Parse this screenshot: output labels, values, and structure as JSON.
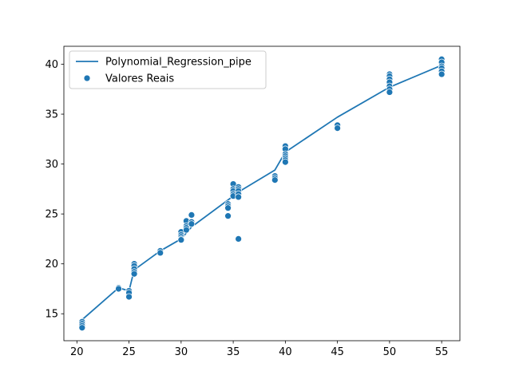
{
  "chart_data": {
    "type": "scatter",
    "title": "",
    "xlabel": "",
    "ylabel": "",
    "xlim": [
      18.75,
      56.75
    ],
    "ylim": [
      12.3,
      41.8
    ],
    "xticks": [
      20,
      25,
      30,
      35,
      40,
      45,
      50,
      55
    ],
    "yticks": [
      15,
      20,
      25,
      30,
      35,
      40
    ],
    "grid": false,
    "legend_position": "top-left",
    "colors": {
      "series": "#1f77b4",
      "marker_edge": "#ffffff"
    },
    "series": [
      {
        "name": "Polynomial_Regression_pipe",
        "kind": "line",
        "x": [
          20.5,
          24,
          25,
          25.5,
          28,
          30,
          30.5,
          31,
          34.5,
          35,
          35.5,
          39,
          40,
          45,
          50,
          55
        ],
        "y": [
          14.4,
          17.6,
          17.3,
          19.4,
          21.3,
          22.5,
          23.1,
          23.7,
          26.4,
          26.8,
          27.2,
          29.4,
          31.2,
          34.7,
          37.7,
          39.9
        ]
      },
      {
        "name": "Valores Reais",
        "kind": "scatter",
        "points": [
          [
            20.5,
            14.2
          ],
          [
            20.5,
            14.0
          ],
          [
            20.5,
            13.8
          ],
          [
            20.5,
            13.6
          ],
          [
            24,
            17.6
          ],
          [
            24,
            17.5
          ],
          [
            25,
            17.3
          ],
          [
            25,
            17.1
          ],
          [
            25,
            16.7
          ],
          [
            25.5,
            20.0
          ],
          [
            25.5,
            19.8
          ],
          [
            25.5,
            19.5
          ],
          [
            25.5,
            19.2
          ],
          [
            25.5,
            19.0
          ],
          [
            28,
            21.3
          ],
          [
            28,
            21.1
          ],
          [
            30,
            23.2
          ],
          [
            30,
            22.9
          ],
          [
            30,
            22.7
          ],
          [
            30,
            22.5
          ],
          [
            30,
            22.4
          ],
          [
            30.5,
            24.3
          ],
          [
            30.5,
            23.8
          ],
          [
            30.5,
            23.6
          ],
          [
            30.5,
            23.4
          ],
          [
            31,
            24.9
          ],
          [
            31,
            24.2
          ],
          [
            31,
            24.0
          ],
          [
            34.5,
            26.0
          ],
          [
            34.5,
            25.8
          ],
          [
            34.5,
            25.6
          ],
          [
            34.5,
            24.8
          ],
          [
            35,
            28.0
          ],
          [
            35,
            27.5
          ],
          [
            35,
            27.3
          ],
          [
            35,
            27.0
          ],
          [
            35,
            26.8
          ],
          [
            35.5,
            27.7
          ],
          [
            35.5,
            27.5
          ],
          [
            35.5,
            27.3
          ],
          [
            35.5,
            27.0
          ],
          [
            35.5,
            26.7
          ],
          [
            35.5,
            22.5
          ],
          [
            39,
            28.8
          ],
          [
            39,
            28.6
          ],
          [
            39,
            28.4
          ],
          [
            40,
            31.8
          ],
          [
            40,
            31.5
          ],
          [
            40,
            31.0
          ],
          [
            40,
            30.8
          ],
          [
            40,
            30.6
          ],
          [
            40,
            30.4
          ],
          [
            40,
            30.2
          ],
          [
            45,
            33.9
          ],
          [
            45,
            33.6
          ],
          [
            50,
            39.0
          ],
          [
            50,
            38.8
          ],
          [
            50,
            38.5
          ],
          [
            50,
            38.2
          ],
          [
            50,
            37.8
          ],
          [
            50,
            37.5
          ],
          [
            50,
            37.2
          ],
          [
            55,
            40.5
          ],
          [
            55,
            40.2
          ],
          [
            55,
            39.8
          ],
          [
            55,
            39.6
          ],
          [
            55,
            39.3
          ],
          [
            55,
            39.0
          ]
        ]
      }
    ]
  }
}
